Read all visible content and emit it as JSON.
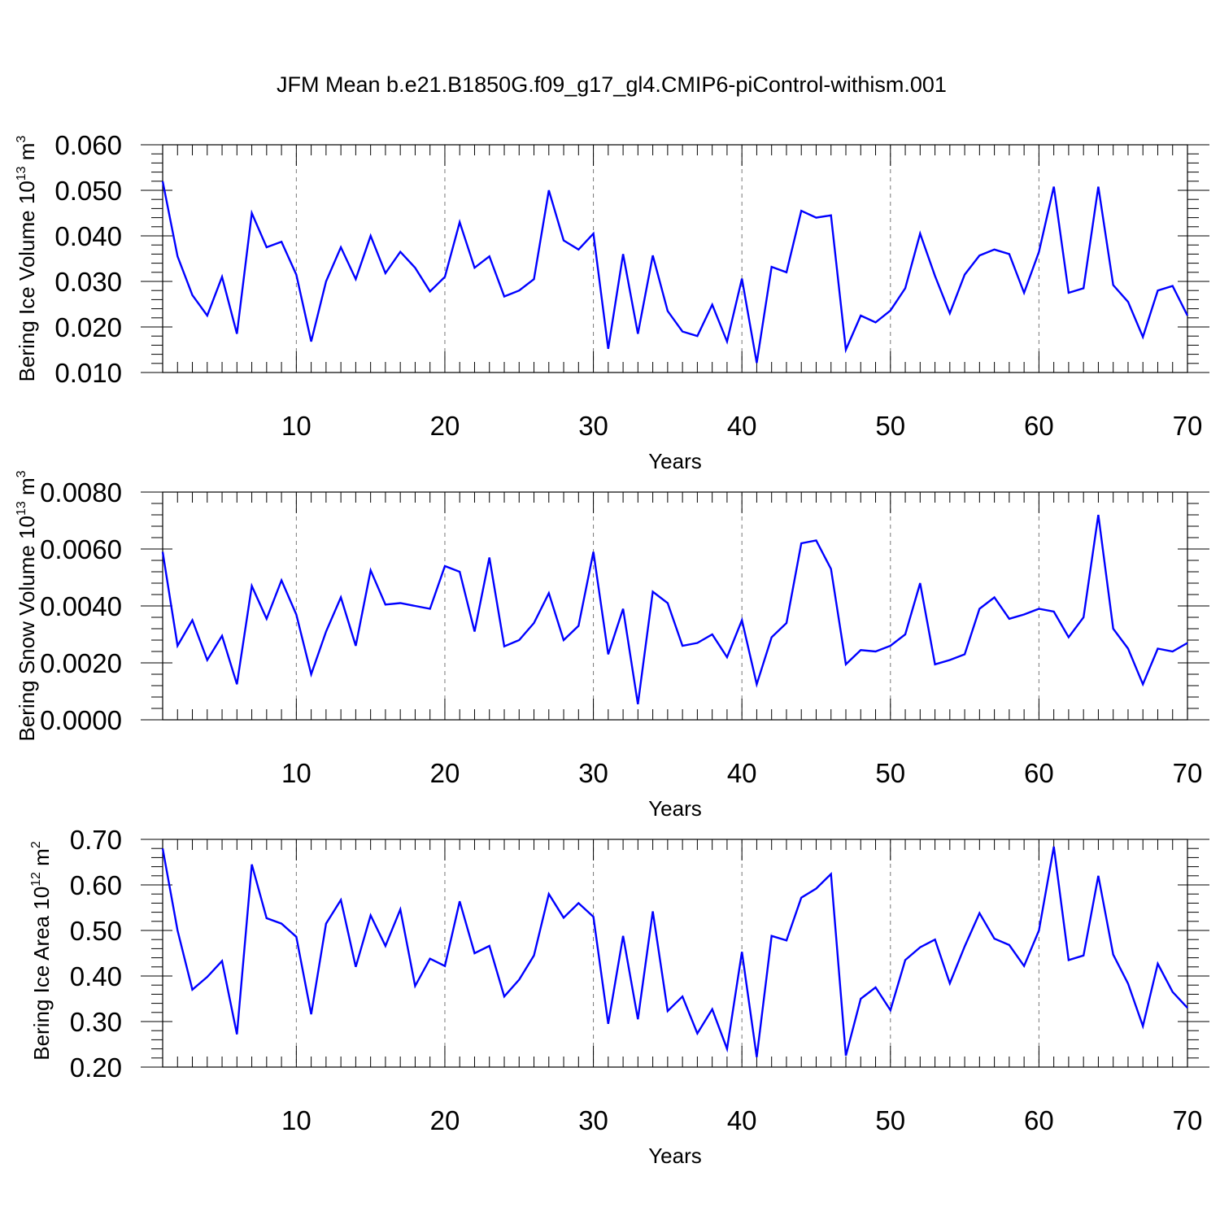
{
  "chart_data": [
    {
      "type": "line",
      "title": "JFM Mean b.e21.B1850G.f09_g17_gl4.CMIP6-piControl-withism.001",
      "xlabel": "Years",
      "ylabel": "Bering Ice Volume 10",
      "ylabel_sup": "13",
      "ylabel_unit": "m",
      "ylabel_unit_sup": "3",
      "xlim": [
        1,
        70
      ],
      "ylim": [
        0.01,
        0.06
      ],
      "x_ticks": [
        10,
        20,
        30,
        40,
        50,
        60,
        70
      ],
      "y_ticks": [
        0.01,
        0.02,
        0.03,
        0.04,
        0.05,
        0.06
      ],
      "y_tick_labels": [
        "0.010",
        "0.020",
        "0.030",
        "0.040",
        "0.050",
        "0.060"
      ],
      "grid": "vertical dashed at x ticks",
      "series": [
        {
          "name": "Bering Ice Volume",
          "color": "#0000ff",
          "values": [
            0.052,
            0.0355,
            0.027,
            0.0225,
            0.031,
            0.0185,
            0.045,
            0.0375,
            0.0387,
            0.0315,
            0.0168,
            0.03,
            0.0375,
            0.0305,
            0.04,
            0.0318,
            0.0365,
            0.033,
            0.0278,
            0.031,
            0.043,
            0.033,
            0.0355,
            0.0267,
            0.028,
            0.0305,
            0.05,
            0.039,
            0.037,
            0.0405,
            0.0152,
            0.036,
            0.0185,
            0.0357,
            0.0235,
            0.019,
            0.018,
            0.0249,
            0.0168,
            0.0306,
            0.0121,
            0.0332,
            0.032,
            0.0455,
            0.044,
            0.0445,
            0.015,
            0.0225,
            0.021,
            0.0236,
            0.0285,
            0.0405,
            0.0312,
            0.023,
            0.0315,
            0.0357,
            0.037,
            0.036,
            0.0275,
            0.0365,
            0.0508,
            0.0275,
            0.0285,
            0.0508,
            0.0292,
            0.0255,
            0.0178,
            0.028,
            0.029,
            0.0225
          ]
        }
      ]
    },
    {
      "type": "line",
      "xlabel": "Years",
      "ylabel": "Bering Snow Volume 10",
      "ylabel_sup": "13",
      "ylabel_unit": "m",
      "ylabel_unit_sup": "3",
      "xlim": [
        1,
        70
      ],
      "ylim": [
        0.0,
        0.008
      ],
      "x_ticks": [
        10,
        20,
        30,
        40,
        50,
        60,
        70
      ],
      "y_ticks": [
        0.0,
        0.002,
        0.004,
        0.006,
        0.008
      ],
      "y_tick_labels": [
        "0.0000",
        "0.0020",
        "0.0040",
        "0.0060",
        "0.0080"
      ],
      "grid": "vertical dashed at x ticks",
      "series": [
        {
          "name": "Bering Snow Volume",
          "color": "#0000ff",
          "values": [
            0.0059,
            0.0026,
            0.0035,
            0.0021,
            0.00295,
            0.00125,
            0.0047,
            0.00355,
            0.0049,
            0.0037,
            0.0016,
            0.0031,
            0.0043,
            0.0026,
            0.00525,
            0.00405,
            0.0041,
            0.004,
            0.0039,
            0.0054,
            0.0052,
            0.0031,
            0.0057,
            0.00258,
            0.0028,
            0.0034,
            0.00445,
            0.0028,
            0.0033,
            0.0059,
            0.0023,
            0.0039,
            0.00055,
            0.0045,
            0.0041,
            0.0026,
            0.0027,
            0.003,
            0.0022,
            0.0035,
            0.00125,
            0.0029,
            0.0034,
            0.0062,
            0.0063,
            0.0053,
            0.00195,
            0.00245,
            0.0024,
            0.0026,
            0.003,
            0.0048,
            0.00195,
            0.0021,
            0.0023,
            0.0039,
            0.0043,
            0.00355,
            0.0037,
            0.0039,
            0.0038,
            0.0029,
            0.0036,
            0.0072,
            0.0032,
            0.0025,
            0.00125,
            0.0025,
            0.0024,
            0.0027
          ]
        }
      ]
    },
    {
      "type": "line",
      "xlabel": "Years",
      "ylabel": "Bering Ice Area 10",
      "ylabel_sup": "12",
      "ylabel_unit": "m",
      "ylabel_unit_sup": "2",
      "xlim": [
        1,
        70
      ],
      "ylim": [
        0.2,
        0.7
      ],
      "x_ticks": [
        10,
        20,
        30,
        40,
        50,
        60,
        70
      ],
      "y_ticks": [
        0.2,
        0.3,
        0.4,
        0.5,
        0.6,
        0.7
      ],
      "y_tick_labels": [
        "0.20",
        "0.30",
        "0.40",
        "0.50",
        "0.60",
        "0.70"
      ],
      "grid": "vertical dashed at x ticks",
      "series": [
        {
          "name": "Bering Ice Area",
          "color": "#0000ff",
          "values": [
            0.68,
            0.5,
            0.37,
            0.398,
            0.433,
            0.272,
            0.645,
            0.527,
            0.515,
            0.486,
            0.316,
            0.515,
            0.567,
            0.42,
            0.533,
            0.466,
            0.546,
            0.378,
            0.438,
            0.422,
            0.564,
            0.45,
            0.466,
            0.355,
            0.392,
            0.445,
            0.58,
            0.528,
            0.56,
            0.53,
            0.295,
            0.488,
            0.305,
            0.542,
            0.323,
            0.355,
            0.274,
            0.327,
            0.24,
            0.453,
            0.222,
            0.488,
            0.478,
            0.572,
            0.592,
            0.624,
            0.225,
            0.35,
            0.375,
            0.325,
            0.435,
            0.463,
            0.48,
            0.384,
            0.465,
            0.538,
            0.482,
            0.468,
            0.422,
            0.5,
            0.684,
            0.435,
            0.445,
            0.62,
            0.447,
            0.383,
            0.29,
            0.427,
            0.365,
            0.33
          ]
        }
      ]
    }
  ]
}
